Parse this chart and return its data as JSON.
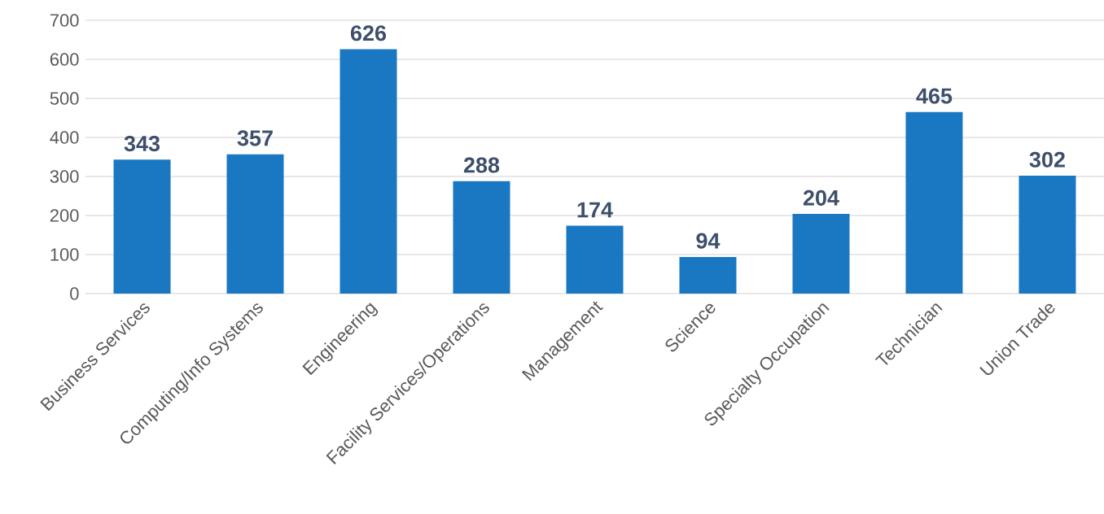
{
  "chart_data": {
    "type": "bar",
    "categories": [
      "Business Services",
      "Computing/Info Systems",
      "Engineering",
      "Facility Services/Operations",
      "Management",
      "Science",
      "Specialty Occupation",
      "Technician",
      "Union Trade"
    ],
    "values": [
      343,
      357,
      626,
      288,
      174,
      94,
      204,
      465,
      302
    ],
    "color": "#1a78c2",
    "ylim": [
      0,
      700
    ],
    "yticks": [
      0,
      100,
      200,
      300,
      400,
      500,
      600,
      700
    ],
    "grid": "y",
    "data_labels": true
  }
}
